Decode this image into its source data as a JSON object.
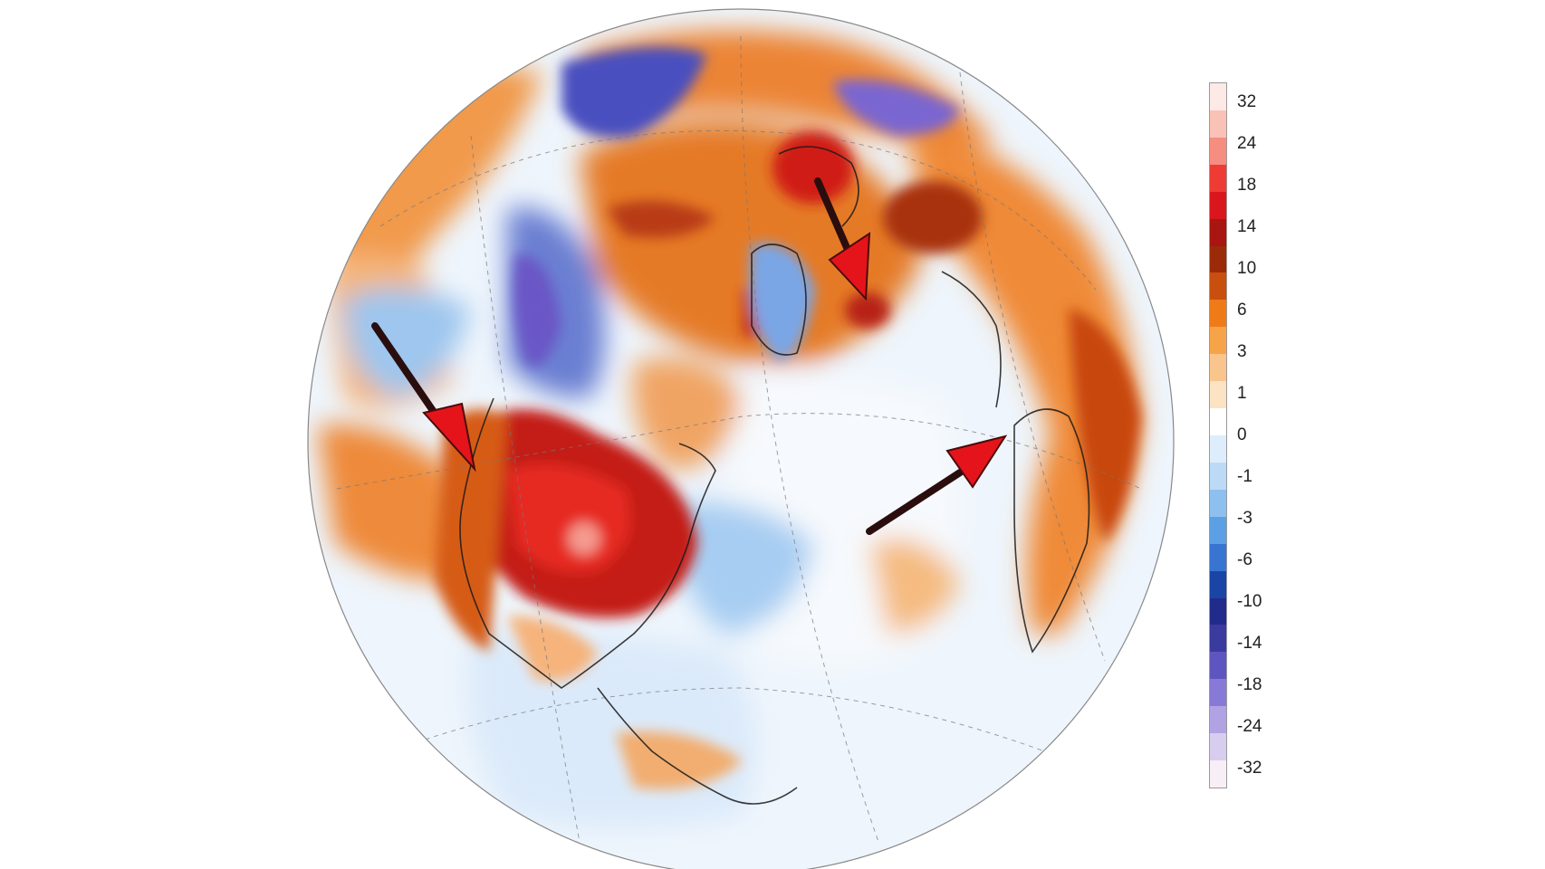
{
  "map": {
    "projection": "orthographic",
    "variable": "temperature anomaly",
    "annotation_arrows": 3,
    "arrow_color": "#e5141b"
  },
  "colorbar": {
    "labels": [
      "32",
      "24",
      "18",
      "14",
      "10",
      "6",
      "3",
      "1",
      "0",
      "-1",
      "-3",
      "-6",
      "-10",
      "-14",
      "-18",
      "-24",
      "-32"
    ],
    "colors": [
      "#fde9e5",
      "#fac2b6",
      "#f58d80",
      "#ee3b34",
      "#d9161b",
      "#a91510",
      "#9b2b08",
      "#c84f0e",
      "#ef7b18",
      "#f7a348",
      "#f9c58c",
      "#fbe3c4",
      "#ffffff",
      "#deedfb",
      "#bcdaf6",
      "#8ec0ef",
      "#5c9fe4",
      "#3875d2",
      "#1a44a6",
      "#202b8c",
      "#3b3a9e",
      "#5e55c0",
      "#8779d6",
      "#b0a2e3",
      "#d7cdef",
      "#f7eef6"
    ]
  }
}
